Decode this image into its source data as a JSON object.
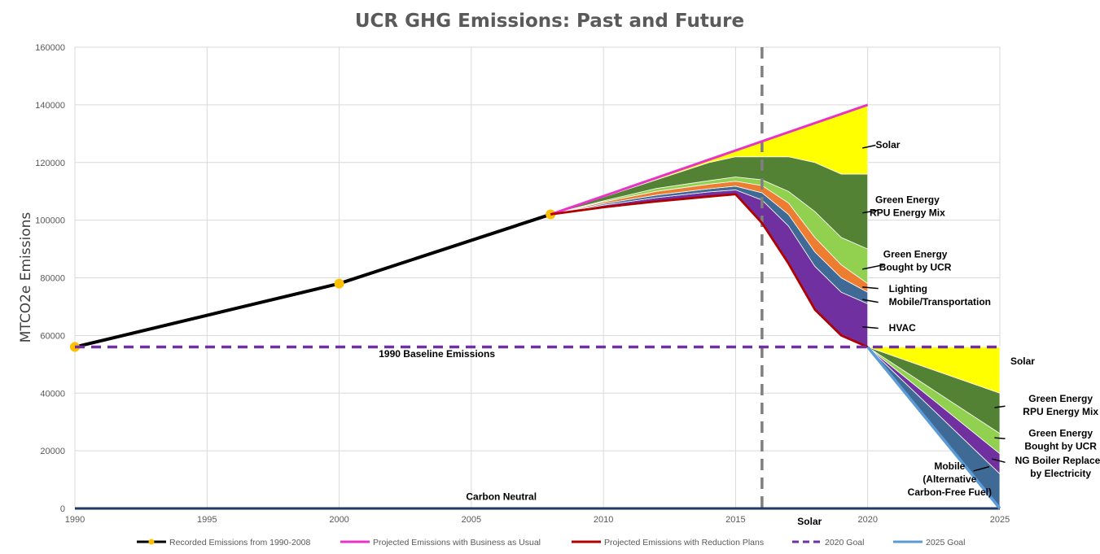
{
  "chart_data": {
    "type": "area",
    "title": "UCR GHG Emissions: Past and Future",
    "ylabel": "MTCO2e Emissions",
    "xlabel": "",
    "xlim": [
      1990,
      2025
    ],
    "ylim": [
      0,
      160000
    ],
    "grid": true,
    "x_ticks": [
      1990,
      1995,
      2000,
      2005,
      2010,
      2015,
      2020,
      2025
    ],
    "y_ticks": [
      0,
      20000,
      40000,
      60000,
      80000,
      100000,
      120000,
      140000,
      160000
    ],
    "lines": [
      {
        "name": "Recorded Emissions from 1990-2008",
        "color": "#000000",
        "marker": true,
        "points": [
          [
            1990,
            56000
          ],
          [
            2000,
            78000
          ],
          [
            2008,
            102000
          ]
        ]
      },
      {
        "name": "Projected Emissions with Business as Usual",
        "color": "#e832c8",
        "points": [
          [
            2008,
            102000
          ],
          [
            2020,
            140000
          ]
        ]
      },
      {
        "name": "Projected Emissions with Reduction Plans",
        "color": "#b00000",
        "points": [
          [
            2008,
            102000
          ],
          [
            2010,
            104500
          ],
          [
            2012,
            106500
          ],
          [
            2014,
            108200
          ],
          [
            2015,
            109000
          ],
          [
            2016,
            99000
          ],
          [
            2017,
            85000
          ],
          [
            2018,
            69000
          ],
          [
            2019,
            60000
          ],
          [
            2020,
            56000
          ]
        ]
      },
      {
        "name": "2020 Goal",
        "color": "#7030a0",
        "dashed": true,
        "points": [
          [
            1990,
            56000
          ],
          [
            2025,
            56000
          ]
        ]
      },
      {
        "name": "2025 Goal",
        "color": "#5b9bd5",
        "points": [
          [
            2020,
            56000
          ],
          [
            2025,
            0
          ]
        ]
      }
    ],
    "bands_2020": {
      "x": [
        2008,
        2010,
        2012,
        2014,
        2015,
        2016,
        2017,
        2018,
        2019,
        2020
      ],
      "series": [
        {
          "name": "HVAC",
          "color": "#7030a0",
          "lower": [
            102000,
            104500,
            106500,
            108200,
            109000,
            99000,
            85000,
            69000,
            60000,
            56000
          ],
          "upper": [
            102000,
            105200,
            107800,
            109800,
            110500,
            107000,
            98000,
            84000,
            75000,
            71000
          ]
        },
        {
          "name": "Mobile/Transportation",
          "color": "#3f6a96",
          "lower": [
            102000,
            105200,
            107800,
            109800,
            110500,
            107000,
            98000,
            84000,
            75000,
            71000
          ],
          "upper": [
            102000,
            105700,
            108700,
            110900,
            111800,
            109500,
            102000,
            89000,
            80000,
            75000
          ]
        },
        {
          "name": "Lighting",
          "color": "#ed7d31",
          "lower": [
            102000,
            105700,
            108700,
            110900,
            111800,
            109500,
            102000,
            89000,
            80000,
            75000
          ],
          "upper": [
            102000,
            106300,
            110000,
            112500,
            113500,
            112000,
            106000,
            94000,
            84500,
            78000
          ]
        },
        {
          "name": "Green Energy Bought by UCR",
          "color": "#92d050",
          "lower": [
            102000,
            106300,
            110000,
            112500,
            113500,
            112000,
            106000,
            94000,
            84500,
            78000
          ],
          "upper": [
            102000,
            106700,
            111000,
            113700,
            115000,
            114000,
            110000,
            103000,
            94000,
            90000
          ]
        },
        {
          "name": "Green Energy RPU Energy Mix",
          "color": "#548235",
          "lower": [
            102000,
            106700,
            111000,
            113700,
            115000,
            114000,
            110000,
            103000,
            94000,
            90000
          ],
          "upper": [
            102000,
            108000,
            114000,
            120000,
            122000,
            122000,
            122000,
            120000,
            116000,
            116000
          ]
        },
        {
          "name": "Solar",
          "color": "#ffff00",
          "lower": [
            102000,
            108000,
            114000,
            120000,
            122000,
            122000,
            122000,
            120000,
            116000,
            116000
          ],
          "upper": [
            102000,
            108300,
            114700,
            121000,
            124200,
            127300,
            130500,
            133700,
            136800,
            140000
          ]
        }
      ]
    },
    "bands_2025": {
      "x": [
        2020,
        2025
      ],
      "series": [
        {
          "name": "Mobile (Alternative Carbon-Free Fuel)",
          "color": "#3f6a96",
          "lower": [
            56000,
            0
          ],
          "upper": [
            56000,
            12000
          ]
        },
        {
          "name": "NG Boiler Replaced by Electricity",
          "color": "#7030a0",
          "lower": [
            56000,
            12000
          ],
          "upper": [
            56000,
            19000
          ]
        },
        {
          "name": "Green Energy Bought by UCR",
          "color": "#92d050",
          "lower": [
            56000,
            19000
          ],
          "upper": [
            56000,
            26000
          ]
        },
        {
          "name": "Green Energy RPU Energy Mix",
          "color": "#548235",
          "lower": [
            56000,
            26000
          ],
          "upper": [
            56000,
            40000
          ]
        },
        {
          "name": "Solar",
          "color": "#ffff00",
          "lower": [
            56000,
            40000
          ],
          "upper": [
            56000,
            56000
          ]
        }
      ]
    },
    "vertical_marker": {
      "x": 2016,
      "label": "Solar",
      "color": "#7f7f7f"
    },
    "annotations": [
      {
        "text": "1990 Baseline Emissions",
        "x": 2001.5,
        "y": 52500,
        "anchor": "start"
      },
      {
        "text": "Carbon Neutral",
        "x": 2004.8,
        "y": 3000,
        "anchor": "start"
      },
      {
        "lines": [
          "Solar"
        ],
        "x": 2020.3,
        "y": 125000,
        "anchor": "start",
        "arrow": {
          "from": [
            2020.3,
            126000
          ],
          "to": [
            2019.8,
            125000
          ]
        }
      },
      {
        "lines": [
          "Green Energy",
          "RPU Energy Mix"
        ],
        "x": 2021.5,
        "y": 106000,
        "anchor": "middle",
        "arrow": {
          "from": [
            2020.4,
            103500
          ],
          "to": [
            2019.8,
            102500
          ]
        }
      },
      {
        "lines": [
          "Green Energy",
          "Bought by UCR"
        ],
        "x": 2021.8,
        "y": 87000,
        "anchor": "middle",
        "arrow": {
          "from": [
            2020.6,
            84500
          ],
          "to": [
            2019.8,
            83000
          ]
        }
      },
      {
        "lines": [
          "Lighting"
        ],
        "x": 2020.8,
        "y": 75000,
        "anchor": "start",
        "arrow": {
          "from": [
            2020.4,
            76300
          ],
          "to": [
            2019.8,
            76800
          ]
        }
      },
      {
        "lines": [
          "Mobile/Transportation"
        ],
        "x": 2020.8,
        "y": 70500,
        "anchor": "start",
        "arrow": {
          "from": [
            2020.4,
            71500
          ],
          "to": [
            2019.8,
            72500
          ]
        }
      },
      {
        "lines": [
          "HVAC"
        ],
        "x": 2020.8,
        "y": 61500,
        "anchor": "start",
        "arrow": {
          "from": [
            2020.4,
            62500
          ],
          "to": [
            2019.8,
            63000
          ]
        }
      },
      {
        "lines": [
          "Solar"
        ],
        "x": 2025.4,
        "y": 50000,
        "anchor": "start"
      },
      {
        "lines": [
          "Green Energy",
          "RPU Energy Mix"
        ],
        "x": 2027.3,
        "y": 37000,
        "anchor": "middle",
        "arrow": {
          "from": [
            2025.2,
            35500
          ],
          "to": [
            2024.8,
            35000
          ]
        }
      },
      {
        "lines": [
          "Green Energy",
          "Bought by UCR"
        ],
        "x": 2027.3,
        "y": 25000,
        "anchor": "middle",
        "arrow": {
          "from": [
            2025.2,
            24200
          ],
          "to": [
            2024.8,
            24500
          ]
        }
      },
      {
        "lines": [
          "NG Boiler Replaced",
          "by Electricity"
        ],
        "x": 2027.3,
        "y": 15500,
        "anchor": "middle",
        "arrow": {
          "from": [
            2025.2,
            16000
          ],
          "to": [
            2024.7,
            17200
          ]
        }
      },
      {
        "lines": [
          "Mobile",
          "(Alternative",
          "Carbon-Free Fuel)"
        ],
        "x": 2023.1,
        "y": 13500,
        "anchor": "middle",
        "arrow": {
          "from": [
            2024.0,
            13000
          ],
          "to": [
            2024.6,
            14500
          ]
        }
      }
    ],
    "legend": [
      {
        "label": "Recorded Emissions from 1990-2008",
        "color": "#000000",
        "style": "marker"
      },
      {
        "label": "Projected Emissions with Business as Usual",
        "color": "#e832c8",
        "style": "solid"
      },
      {
        "label": "Projected Emissions with Reduction Plans",
        "color": "#b00000",
        "style": "solid"
      },
      {
        "label": "2020 Goal",
        "color": "#7030a0",
        "style": "dashed"
      },
      {
        "label": "2025 Goal",
        "color": "#5b9bd5",
        "style": "solid"
      }
    ],
    "legend_position": "bottom",
    "colors": {
      "grid": "#d9d9d9",
      "axis": "#1f4e79",
      "marker": "#ffc000",
      "zero_line": "#1f3864"
    }
  }
}
